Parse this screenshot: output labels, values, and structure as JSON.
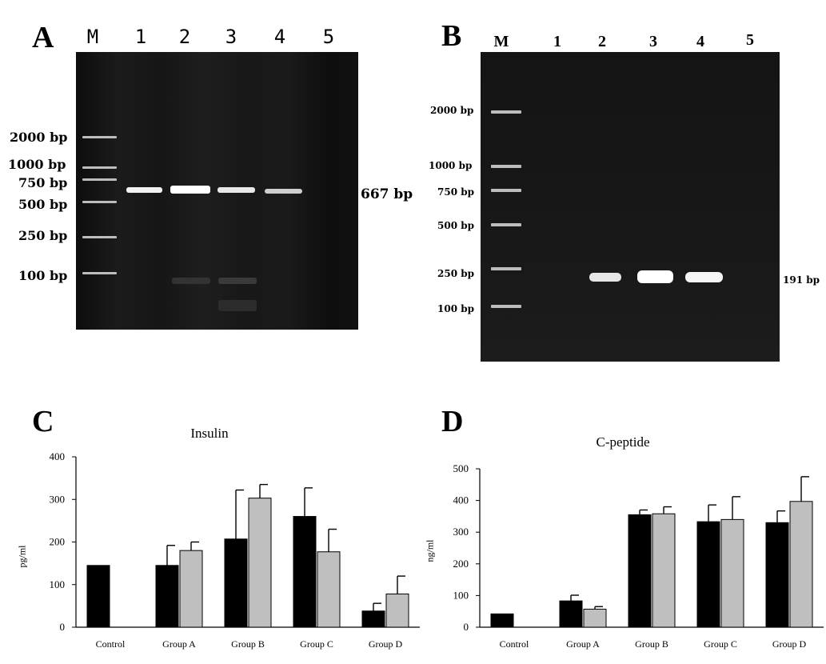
{
  "panels": {
    "A": {
      "letter": "A",
      "lanes": [
        "M",
        "1",
        "2",
        "3",
        "4",
        "5"
      ],
      "marker_labels": [
        "2000 bp",
        "1000 bp",
        "750 bp",
        "500 bp",
        "250 bp",
        "100 bp"
      ],
      "product_label": "667 bp"
    },
    "B": {
      "letter": "B",
      "lanes": [
        "M",
        "1",
        "2",
        "3",
        "4",
        "5"
      ],
      "marker_labels": [
        "2000 bp",
        "1000 bp",
        "750 bp",
        "500 bp",
        "250 bp",
        "100 bp"
      ],
      "product_label": "191 bp"
    },
    "C": {
      "letter": "C"
    },
    "D": {
      "letter": "D"
    }
  },
  "chart_data": [
    {
      "panel": "C",
      "type": "bar",
      "title": "Insulin",
      "xlabel": "",
      "ylabel": "pg/ml",
      "ylim": [
        0,
        400
      ],
      "yticks": [
        0,
        100,
        200,
        300,
        400
      ],
      "categories": [
        "Control",
        "Group A",
        "Group B",
        "Group C",
        "Group D"
      ],
      "series": [
        {
          "color": "#000000",
          "values": [
            145,
            145,
            207,
            260,
            38
          ],
          "errors": [
            0,
            47,
            115,
            67,
            18
          ]
        },
        {
          "color": "#bfbfbf",
          "values": [
            null,
            180,
            303,
            177,
            78
          ],
          "errors": [
            null,
            20,
            32,
            53,
            42
          ]
        }
      ]
    },
    {
      "panel": "D",
      "type": "bar",
      "title": "C-peptide",
      "xlabel": "",
      "ylabel": "ng/ml",
      "ylim": [
        0,
        500
      ],
      "yticks": [
        0,
        100,
        200,
        300,
        400,
        500
      ],
      "categories": [
        "Control",
        "Group A",
        "Group B",
        "Group C",
        "Group D"
      ],
      "series": [
        {
          "color": "#000000",
          "values": [
            42,
            83,
            355,
            333,
            330
          ],
          "errors": [
            0,
            18,
            15,
            53,
            37
          ]
        },
        {
          "color": "#bfbfbf",
          "values": [
            null,
            57,
            358,
            340,
            397
          ],
          "errors": [
            null,
            8,
            22,
            72,
            78
          ]
        }
      ]
    }
  ]
}
